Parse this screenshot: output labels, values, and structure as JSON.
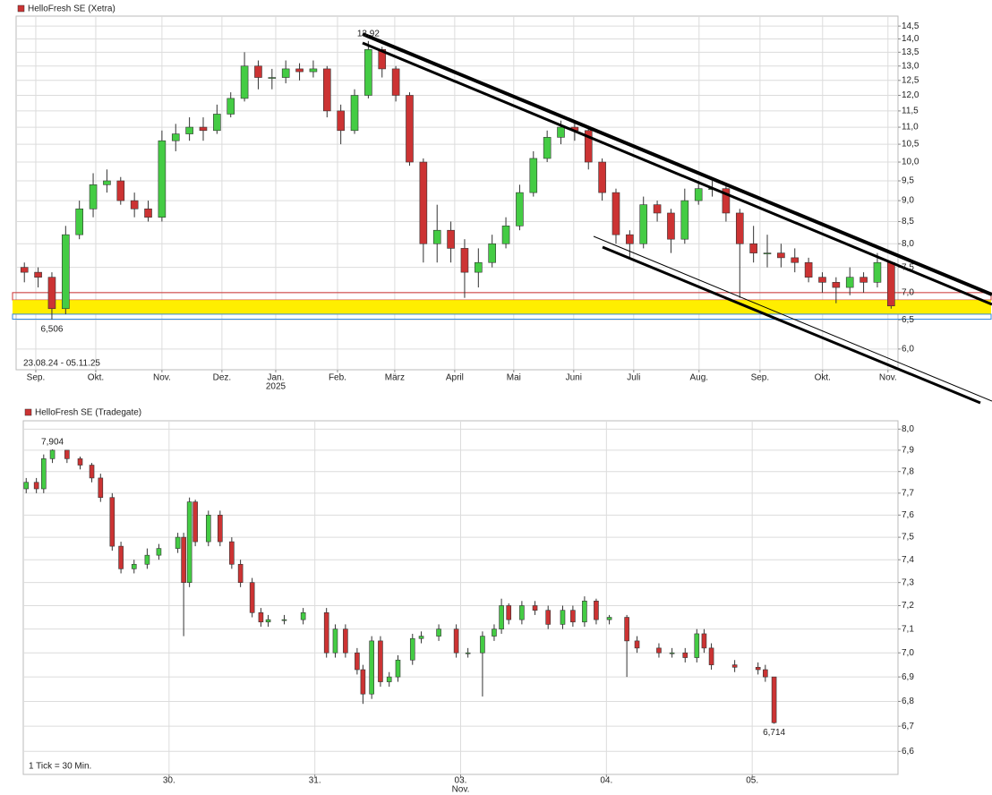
{
  "chart_data": [
    {
      "type": "candlestick",
      "title": "HelloFresh SE (Xetra)",
      "title_color": "#cc3333",
      "log_scale": true,
      "grid": true,
      "up_color": "#44cc44",
      "down_color": "#cc3333",
      "ylim": [
        5.67,
        14.9
      ],
      "yticks": [
        {
          "value": 14.5,
          "label": "14,5"
        },
        {
          "value": 14,
          "label": "14,0"
        },
        {
          "value": 13.5,
          "label": "13,5"
        },
        {
          "value": 13,
          "label": "13,0"
        },
        {
          "value": 12.5,
          "label": "12,5"
        },
        {
          "value": 12,
          "label": "12,0"
        },
        {
          "value": 11.5,
          "label": "11,5"
        },
        {
          "value": 11,
          "label": "11,0"
        },
        {
          "value": 10.5,
          "label": "10,5"
        },
        {
          "value": 10,
          "label": "10,0"
        },
        {
          "value": 9.5,
          "label": "9,5"
        },
        {
          "value": 9,
          "label": "9,0"
        },
        {
          "value": 8.5,
          "label": "8,5"
        },
        {
          "value": 8,
          "label": "8,0"
        },
        {
          "value": 7.5,
          "label": "7,5"
        },
        {
          "value": 7,
          "label": "7,0"
        },
        {
          "value": 6.5,
          "label": "6,5"
        },
        {
          "value": 6,
          "label": "6,0"
        }
      ],
      "xlim": [
        -0.6,
        63.5
      ],
      "xticks": [
        {
          "value": 0.83,
          "label": "Sep."
        },
        {
          "value": 5.19,
          "label": "Okt."
        },
        {
          "value": 10.0,
          "label": "Nov."
        },
        {
          "value": 14.36,
          "label": "Dez."
        },
        {
          "value": 18.27,
          "label": "Jan."
        },
        {
          "value": 22.76,
          "label": "Feb."
        },
        {
          "value": 26.92,
          "label": "März"
        },
        {
          "value": 31.28,
          "label": "April"
        },
        {
          "value": 35.57,
          "label": "Mai"
        },
        {
          "value": 39.93,
          "label": "Juni"
        },
        {
          "value": 44.29,
          "label": "Juli"
        },
        {
          "value": 49.04,
          "label": "Aug."
        },
        {
          "value": 53.47,
          "label": "Sep."
        },
        {
          "value": 58.02,
          "label": "Okt."
        },
        {
          "value": 62.77,
          "label": "Nov."
        }
      ],
      "x_sublabels": [
        {
          "value": 18.27,
          "label": "2025"
        }
      ],
      "x": [
        0,
        1,
        2,
        3,
        4,
        5,
        6,
        7,
        8,
        9,
        10,
        11,
        12,
        13,
        14,
        15,
        16,
        17,
        18,
        19,
        20,
        21,
        22,
        23,
        24,
        25,
        26,
        27,
        28,
        29,
        30,
        31,
        32,
        33,
        34,
        35,
        36,
        37,
        38,
        39,
        40,
        41,
        42,
        43,
        44,
        45,
        46,
        47,
        48,
        49,
        50,
        51,
        52,
        53,
        54,
        55,
        56,
        57,
        58,
        59,
        60,
        61,
        62,
        63
      ],
      "open": [
        7.5,
        7.4,
        7.3,
        6.7,
        8.2,
        8.8,
        9.4,
        9.5,
        9.0,
        8.8,
        8.6,
        10.6,
        10.8,
        11.0,
        10.9,
        11.4,
        11.9,
        13.0,
        12.6,
        12.6,
        12.9,
        12.8,
        12.9,
        11.5,
        10.9,
        12.0,
        13.6,
        12.9,
        12.0,
        10.0,
        8.0,
        8.3,
        7.9,
        7.4,
        7.6,
        8.0,
        8.4,
        9.2,
        10.1,
        10.7,
        11.0,
        10.9,
        10.0,
        9.2,
        8.2,
        8.0,
        8.9,
        8.7,
        8.1,
        9.0,
        9.3,
        9.3,
        8.7,
        8.0,
        7.8,
        7.8,
        7.7,
        7.6,
        7.3,
        7.2,
        7.1,
        7.3,
        7.2,
        7.6
      ],
      "high": [
        7.6,
        7.5,
        7.4,
        8.4,
        9.0,
        9.7,
        9.8,
        9.6,
        9.2,
        9.0,
        10.9,
        11.1,
        11.3,
        11.3,
        11.7,
        12.1,
        13.5,
        13.2,
        12.9,
        13.2,
        13.1,
        13.2,
        13.0,
        11.7,
        12.2,
        13.92,
        13.7,
        13.0,
        12.1,
        10.1,
        8.9,
        8.5,
        8.1,
        7.9,
        8.2,
        8.6,
        9.4,
        10.3,
        10.9,
        11.2,
        11.2,
        11.0,
        10.1,
        9.3,
        8.3,
        9.1,
        9.0,
        8.8,
        9.3,
        9.5,
        9.5,
        9.4,
        8.8,
        8.4,
        8.2,
        8.0,
        7.9,
        7.7,
        7.4,
        7.3,
        7.5,
        7.4,
        7.8,
        7.6
      ],
      "low": [
        7.2,
        7.1,
        6.506,
        6.6,
        8.1,
        8.6,
        9.2,
        8.9,
        8.6,
        8.5,
        8.5,
        10.3,
        10.6,
        10.6,
        10.8,
        11.3,
        11.8,
        12.2,
        12.2,
        12.4,
        12.5,
        12.6,
        11.3,
        10.5,
        10.8,
        11.9,
        12.6,
        11.8,
        9.9,
        7.6,
        7.6,
        7.6,
        6.9,
        7.1,
        7.5,
        7.9,
        8.3,
        9.1,
        10.0,
        10.5,
        10.6,
        9.8,
        9.0,
        8.0,
        7.7,
        7.9,
        8.5,
        7.8,
        8.0,
        8.9,
        9.1,
        8.5,
        6.9,
        7.6,
        7.5,
        7.5,
        7.4,
        7.2,
        7.0,
        6.8,
        6.95,
        7.0,
        7.1,
        6.7
      ],
      "close": [
        7.4,
        7.3,
        6.7,
        8.2,
        8.8,
        9.4,
        9.5,
        9.0,
        8.8,
        8.6,
        10.6,
        10.8,
        11.0,
        10.9,
        11.4,
        11.9,
        13.0,
        12.6,
        12.6,
        12.9,
        12.8,
        12.9,
        11.5,
        10.9,
        12.0,
        13.6,
        12.9,
        12.0,
        10.0,
        8.0,
        8.3,
        7.9,
        7.4,
        7.6,
        8.0,
        8.4,
        9.2,
        10.1,
        10.7,
        11.0,
        10.9,
        10.0,
        9.2,
        8.2,
        8.0,
        8.9,
        8.7,
        8.1,
        9.0,
        9.3,
        9.3,
        8.7,
        8.0,
        7.8,
        7.8,
        7.7,
        7.6,
        7.3,
        7.2,
        7.1,
        7.3,
        7.2,
        7.6,
        6.75
      ],
      "annotations": [
        {
          "x": 25,
          "value": 13.92,
          "label": "13,92",
          "position": "above"
        },
        {
          "x": 2,
          "value": 6.506,
          "label": "6,506",
          "position": "below"
        }
      ],
      "footnote": "23.08.24 - 05.11.25",
      "zones": [
        {
          "from": 6.86,
          "to": 7.0,
          "fill": "none",
          "stroke": "#cc3333"
        },
        {
          "from": 6.6,
          "to": 6.86,
          "fill": "#ffee00",
          "stroke": "none"
        },
        {
          "from": 6.51,
          "to": 6.6,
          "fill": "none",
          "stroke": "#3388dd"
        }
      ]
    },
    {
      "type": "candlestick",
      "title": "HelloFresh SE (Tradegate)",
      "title_color": "#cc3333",
      "log_scale": true,
      "grid": true,
      "up_color": "#44cc44",
      "down_color": "#cc3333",
      "ylim": [
        6.51,
        8.04
      ],
      "yticks": [
        {
          "value": 8.0,
          "label": "8,0"
        },
        {
          "value": 7.9,
          "label": "7,9"
        },
        {
          "value": 7.8,
          "label": "7,8"
        },
        {
          "value": 7.7,
          "label": "7,7"
        },
        {
          "value": 7.6,
          "label": "7,6"
        },
        {
          "value": 7.5,
          "label": "7,5"
        },
        {
          "value": 7.4,
          "label": "7,4"
        },
        {
          "value": 7.3,
          "label": "7,3"
        },
        {
          "value": 7.2,
          "label": "7,2"
        },
        {
          "value": 7.1,
          "label": "7,1"
        },
        {
          "value": 7.0,
          "label": "7,0"
        },
        {
          "value": 6.9,
          "label": "6,9"
        },
        {
          "value": 6.8,
          "label": "6,8"
        },
        {
          "value": 6.7,
          "label": "6,7"
        },
        {
          "value": 6.6,
          "label": "6,6"
        }
      ],
      "xlim": [
        0,
        6
      ],
      "xticks": [
        {
          "value": 1,
          "label": "30."
        },
        {
          "value": 2,
          "label": "31."
        },
        {
          "value": 3,
          "label": "03."
        },
        {
          "value": 4,
          "label": "04."
        },
        {
          "value": 5,
          "label": "05."
        }
      ],
      "x_sublabels": [
        {
          "value": 3,
          "label": "Nov."
        }
      ],
      "x": [
        0.02,
        0.09,
        0.14,
        0.2,
        0.3,
        0.39,
        0.47,
        0.53,
        0.61,
        0.67,
        0.76,
        0.85,
        0.93,
        1.06,
        1.1,
        1.14,
        1.18,
        1.27,
        1.35,
        1.43,
        1.49,
        1.57,
        1.63,
        1.68,
        1.79,
        1.92,
        2.08,
        2.14,
        2.21,
        2.29,
        2.33,
        2.39,
        2.45,
        2.51,
        2.57,
        2.67,
        2.73,
        2.85,
        2.97,
        3.05,
        3.15,
        3.23,
        3.28,
        3.33,
        3.42,
        3.51,
        3.6,
        3.7,
        3.77,
        3.85,
        3.93,
        4.02,
        4.14,
        4.21,
        4.36,
        4.45,
        4.54,
        4.62,
        4.67,
        4.72,
        4.88,
        5.04,
        5.09,
        5.15
      ],
      "open": [
        7.72,
        7.75,
        7.72,
        7.86,
        7.9,
        7.86,
        7.83,
        7.77,
        7.68,
        7.46,
        7.36,
        7.38,
        7.42,
        7.45,
        7.5,
        7.3,
        7.66,
        7.48,
        7.6,
        7.48,
        7.38,
        7.3,
        7.17,
        7.13,
        7.14,
        7.14,
        7.17,
        7.0,
        7.1,
        7.0,
        6.93,
        6.83,
        7.05,
        6.88,
        6.9,
        6.97,
        7.06,
        7.07,
        7.1,
        7.0,
        7.0,
        7.07,
        7.1,
        7.2,
        7.14,
        7.2,
        7.18,
        7.12,
        7.18,
        7.13,
        7.22,
        7.14,
        7.15,
        7.05,
        7.02,
        7.0,
        7.0,
        6.98,
        7.08,
        7.02,
        6.95,
        6.94,
        6.93,
        6.9
      ],
      "high": [
        7.77,
        7.77,
        7.88,
        7.904,
        7.9,
        7.87,
        7.84,
        7.79,
        7.7,
        7.48,
        7.4,
        7.45,
        7.47,
        7.52,
        7.52,
        7.68,
        7.67,
        7.62,
        7.62,
        7.5,
        7.4,
        7.32,
        7.19,
        7.16,
        7.16,
        7.19,
        7.19,
        7.12,
        7.12,
        7.02,
        6.95,
        7.07,
        7.07,
        6.92,
        6.99,
        7.08,
        7.09,
        7.12,
        7.12,
        7.02,
        7.09,
        7.12,
        7.23,
        7.21,
        7.22,
        7.22,
        7.2,
        7.2,
        7.2,
        7.24,
        7.23,
        7.16,
        7.16,
        7.07,
        7.04,
        7.02,
        7.02,
        7.1,
        7.1,
        7.04,
        6.97,
        6.96,
        6.95,
        6.9
      ],
      "low": [
        7.7,
        7.7,
        7.7,
        7.84,
        7.84,
        7.81,
        7.75,
        7.66,
        7.44,
        7.34,
        7.34,
        7.36,
        7.4,
        7.43,
        7.07,
        7.28,
        7.46,
        7.46,
        7.46,
        7.36,
        7.28,
        7.15,
        7.11,
        7.11,
        7.12,
        7.12,
        6.98,
        6.98,
        6.98,
        6.91,
        6.79,
        6.81,
        6.86,
        6.86,
        6.88,
        6.95,
        7.04,
        7.05,
        6.98,
        6.98,
        6.82,
        7.05,
        7.08,
        7.12,
        7.12,
        7.16,
        7.1,
        7.1,
        7.11,
        7.11,
        7.12,
        7.12,
        6.9,
        7.0,
        6.98,
        6.98,
        6.96,
        6.96,
        7.0,
        6.93,
        6.92,
        6.91,
        6.88,
        6.71
      ],
      "close": [
        7.75,
        7.72,
        7.86,
        7.9,
        7.86,
        7.83,
        7.77,
        7.68,
        7.46,
        7.36,
        7.38,
        7.42,
        7.45,
        7.5,
        7.3,
        7.66,
        7.48,
        7.6,
        7.48,
        7.38,
        7.3,
        7.17,
        7.13,
        7.14,
        7.14,
        7.17,
        7.0,
        7.1,
        7.0,
        6.93,
        6.83,
        7.05,
        6.88,
        6.9,
        6.97,
        7.06,
        7.07,
        7.1,
        7.0,
        7.0,
        7.07,
        7.1,
        7.2,
        7.14,
        7.2,
        7.18,
        7.12,
        7.18,
        7.13,
        7.22,
        7.14,
        7.15,
        7.05,
        7.02,
        7.0,
        7.0,
        6.98,
        7.08,
        7.02,
        6.95,
        6.94,
        6.93,
        6.9,
        6.714
      ],
      "annotations": [
        {
          "x": 0.2,
          "value": 7.904,
          "label": "7,904",
          "position": "above"
        },
        {
          "x": 5.15,
          "value": 6.714,
          "label": "6,714",
          "position": "below"
        }
      ],
      "footnote": "1 Tick = 30 Min."
    }
  ]
}
